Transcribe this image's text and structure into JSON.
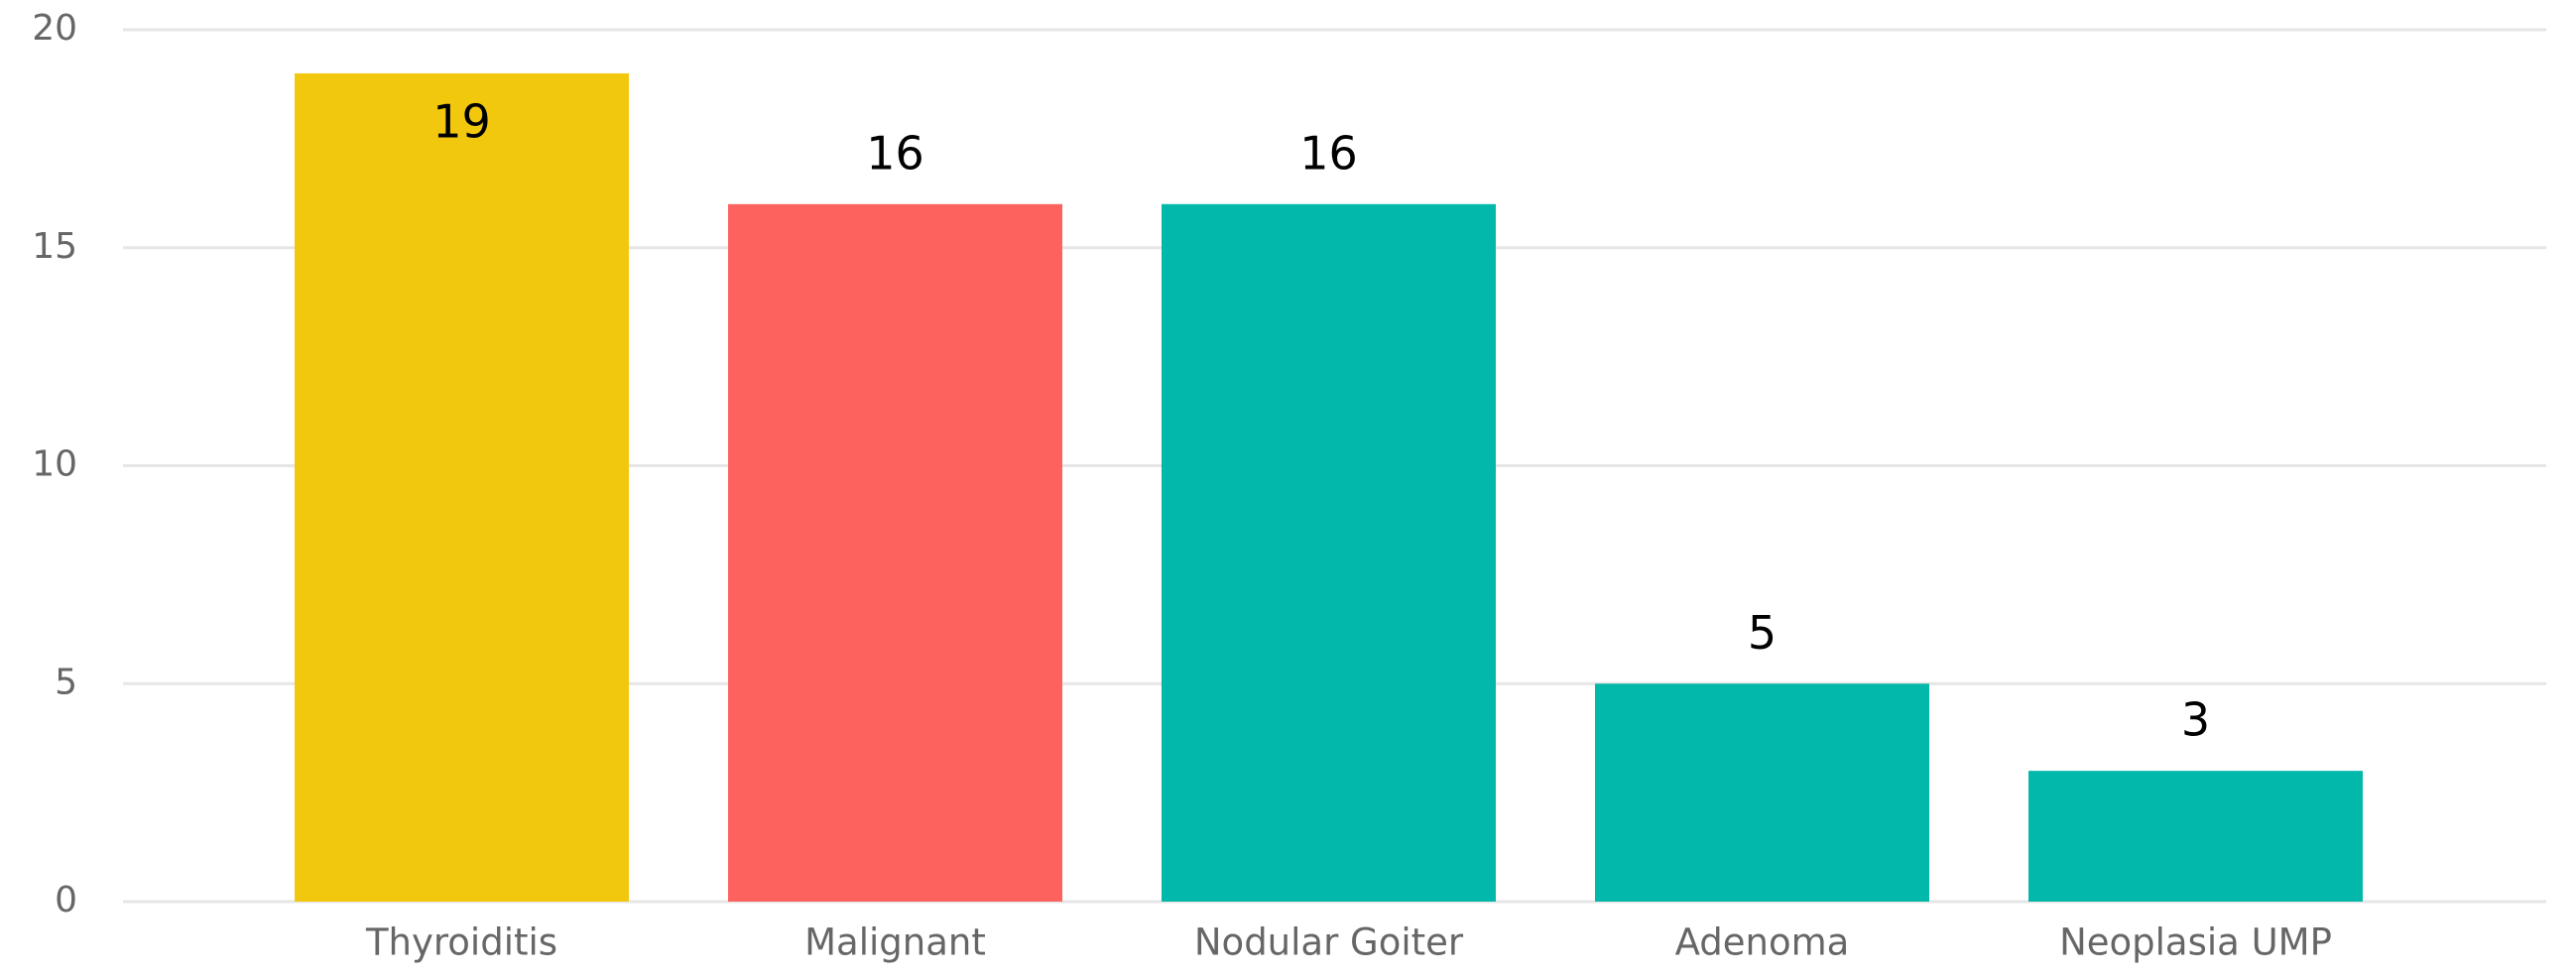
{
  "chart_data": {
    "type": "bar",
    "categories": [
      "Thyroiditis",
      "Malignant",
      "Nodular Goiter",
      "Adenoma",
      "Neoplasia UMP"
    ],
    "values": [
      19,
      16,
      16,
      5,
      3
    ],
    "colors": [
      "#f2c80f",
      "#fd625e",
      "#01b8aa",
      "#01b8aa",
      "#01b8aa"
    ],
    "ylim": [
      0,
      20
    ],
    "yticks": [
      0,
      5,
      10,
      15,
      20
    ],
    "grid": true
  }
}
